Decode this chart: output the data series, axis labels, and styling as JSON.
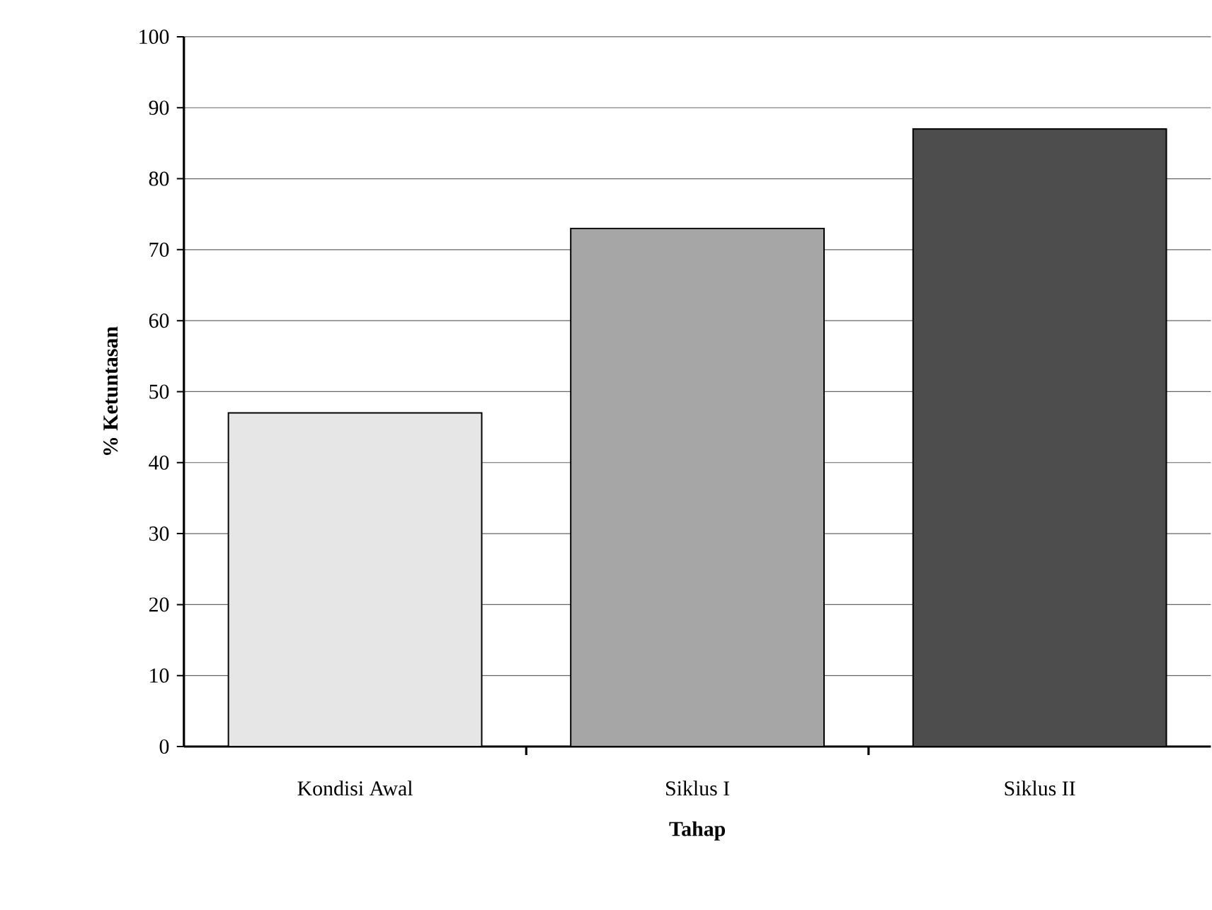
{
  "chart_data": {
    "type": "bar",
    "xlabel": "Tahap",
    "ylabel": "% Ketuntasan",
    "categories": [
      "Kondisi Awal",
      "Siklus I",
      "Siklus II"
    ],
    "values": [
      47,
      73,
      87
    ],
    "colors": [
      "#e6e6e6",
      "#a6a6a6",
      "#4d4d4d"
    ],
    "ylim": [
      0,
      100
    ],
    "yticks": [
      0,
      10,
      20,
      30,
      40,
      50,
      60,
      70,
      80,
      90,
      100
    ],
    "grid": "y"
  }
}
